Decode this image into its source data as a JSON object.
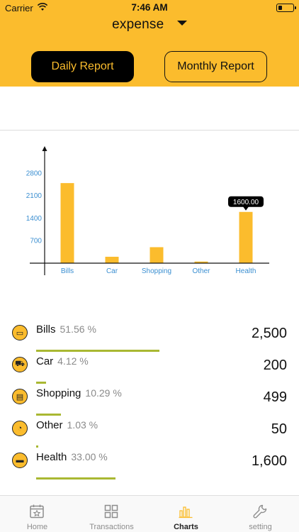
{
  "status_bar": {
    "carrier": "Carrier",
    "time": "7:46 AM"
  },
  "header": {
    "type_label": "expense",
    "daily_report": "Daily Report",
    "monthly_report": "Monthly Report"
  },
  "colors": {
    "accent": "#fbbc2d",
    "bar_green": "#a9b832",
    "axis_label": "#3b8fd1",
    "tab_inactive": "#8d8d8d"
  },
  "chart_data": {
    "type": "bar",
    "categories": [
      "Bills",
      "Car",
      "Shopping",
      "Other",
      "Health"
    ],
    "values": [
      2500,
      200,
      499,
      50,
      1600
    ],
    "y_ticks": [
      "700",
      "1400",
      "2100",
      "2800"
    ],
    "ylim": [
      0,
      3300
    ],
    "tooltip": {
      "category": "Health",
      "label": "1600.00"
    }
  },
  "categories_list": [
    {
      "name": "Bills",
      "percent": "51.56 %",
      "amount": "2,500",
      "fraction": 0.5156,
      "icon": "bill-icon"
    },
    {
      "name": "Car",
      "percent": "4.12 %",
      "amount": "200",
      "fraction": 0.0412,
      "icon": "car-icon"
    },
    {
      "name": "Shopping",
      "percent": "10.29 %",
      "amount": "499",
      "fraction": 0.1029,
      "icon": "shopping-bag-icon"
    },
    {
      "name": "Other",
      "percent": "1.03 %",
      "amount": "50",
      "fraction": 0.0103,
      "icon": "pie-icon"
    },
    {
      "name": "Health",
      "percent": "33.00 %",
      "amount": "1,600",
      "fraction": 0.33,
      "icon": "health-icon"
    }
  ],
  "tabs": [
    {
      "label": "Home",
      "icon": "calendar-star-icon",
      "active": false
    },
    {
      "label": "Transactions",
      "icon": "grid-icon",
      "active": false
    },
    {
      "label": "Charts",
      "icon": "bar-chart-icon",
      "active": true
    },
    {
      "label": "setting",
      "icon": "wrench-icon",
      "active": false
    }
  ]
}
